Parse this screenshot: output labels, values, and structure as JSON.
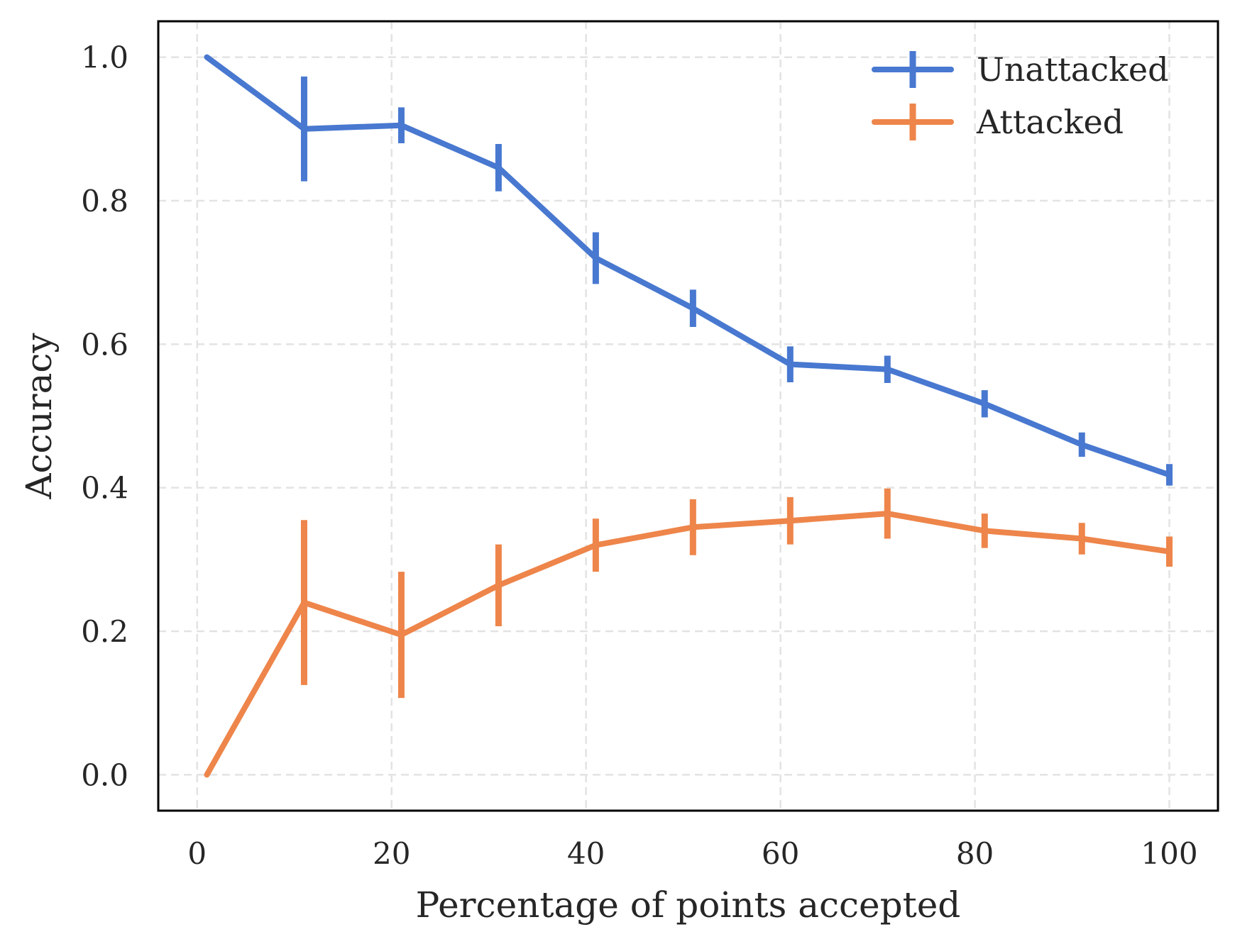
{
  "chart_data": {
    "type": "line",
    "xlabel": "Percentage of points accepted",
    "ylabel": "Accuracy",
    "xlim": [
      -4,
      105
    ],
    "ylim": [
      -0.05,
      1.05
    ],
    "xticks": [
      0,
      20,
      40,
      60,
      80,
      100
    ],
    "xtick_labels": [
      "0",
      "20",
      "40",
      "60",
      "80",
      "100"
    ],
    "yticks": [
      0.0,
      0.2,
      0.4,
      0.6,
      0.8,
      1.0
    ],
    "ytick_labels": [
      "0.0",
      "0.2",
      "0.4",
      "0.6",
      "0.8",
      "1.0"
    ],
    "grid": true,
    "legend_position": "top-right",
    "x": [
      1,
      11,
      21,
      31,
      41,
      51,
      61,
      71,
      81,
      91,
      100
    ],
    "series": [
      {
        "name": "Unattacked",
        "color": "#4878d0",
        "values": [
          1.0,
          0.9,
          0.905,
          0.846,
          0.72,
          0.65,
          0.572,
          0.565,
          0.517,
          0.46,
          0.418
        ],
        "errors": [
          0.0,
          0.073,
          0.025,
          0.033,
          0.036,
          0.026,
          0.025,
          0.019,
          0.019,
          0.017,
          0.015
        ]
      },
      {
        "name": "Attacked",
        "color": "#ee854a",
        "values": [
          0.0,
          0.24,
          0.195,
          0.264,
          0.32,
          0.345,
          0.354,
          0.364,
          0.34,
          0.329,
          0.311
        ],
        "errors": [
          0.0,
          0.115,
          0.088,
          0.057,
          0.037,
          0.039,
          0.033,
          0.035,
          0.024,
          0.022,
          0.021
        ]
      }
    ]
  }
}
